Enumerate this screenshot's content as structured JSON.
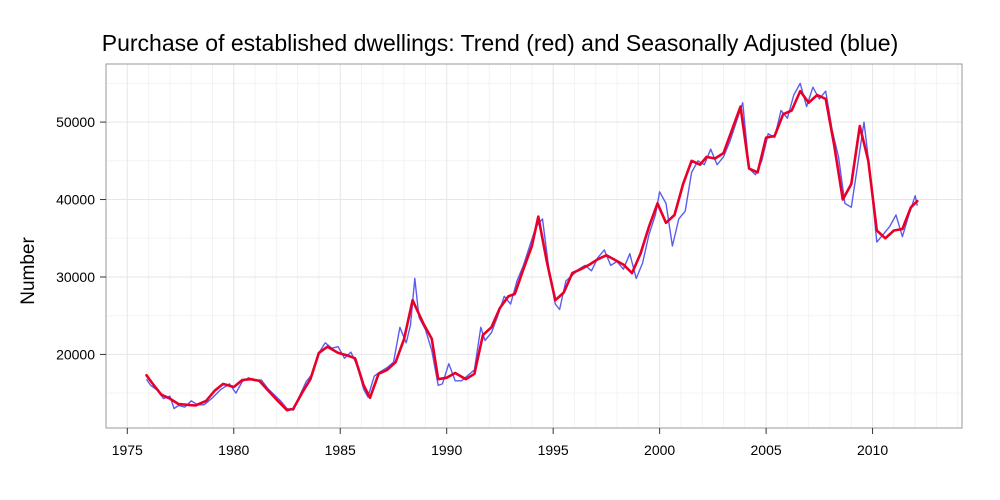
{
  "chart_data": {
    "type": "line",
    "title": "Purchase of established dwellings: Trend (red) and Seasonally Adjusted (blue)",
    "xlabel": "",
    "ylabel": "Number",
    "xlim": [
      1974.0,
      2014.2
    ],
    "ylim": [
      10500,
      57500
    ],
    "x_ticks": [
      1975,
      1980,
      1985,
      1990,
      1995,
      2000,
      2005,
      2010
    ],
    "y_ticks": [
      20000,
      30000,
      40000,
      50000
    ],
    "grid": true,
    "colors": {
      "trend": "#e8002a",
      "seasonally_adjusted": "#4a4aee",
      "grid_major": "#e6e6e6",
      "grid_minor": "#f3f3f3",
      "panel_border": "#9a9a9a"
    },
    "series": [
      {
        "key": "trend",
        "x": [
          1975.9,
          1976.2,
          1976.6,
          1977.0,
          1977.4,
          1977.8,
          1978.2,
          1978.7,
          1979.1,
          1979.5,
          1980.0,
          1980.4,
          1980.8,
          1981.2,
          1981.6,
          1982.0,
          1982.5,
          1982.8,
          1983.2,
          1983.6,
          1984.0,
          1984.4,
          1984.9,
          1985.3,
          1985.7,
          1986.1,
          1986.4,
          1986.8,
          1987.2,
          1987.6,
          1988.0,
          1988.4,
          1988.9,
          1989.3,
          1989.6,
          1990.0,
          1990.4,
          1990.9,
          1991.3,
          1991.7,
          1992.1,
          1992.5,
          1992.9,
          1993.2,
          1993.6,
          1994.0,
          1994.3,
          1994.7,
          1995.1,
          1995.5,
          1995.9,
          1996.3,
          1996.7,
          1997.1,
          1997.5,
          1997.9,
          1998.3,
          1998.7,
          1999.1,
          1999.5,
          1999.9,
          2000.3,
          2000.7,
          2001.1,
          2001.5,
          2001.9,
          2002.2,
          2002.6,
          2003.0,
          2003.4,
          2003.8,
          2004.2,
          2004.6,
          2005.0,
          2005.4,
          2005.8,
          2006.2,
          2006.6,
          2007.0,
          2007.4,
          2007.8,
          2008.2,
          2008.6,
          2009.0,
          2009.4,
          2009.8,
          2010.2,
          2010.6,
          2011.0,
          2011.4,
          2011.8,
          2012.1
        ],
        "values": [
          17300,
          16200,
          14800,
          14300,
          13600,
          13500,
          13400,
          14000,
          15300,
          16200,
          15800,
          16700,
          16800,
          16600,
          15400,
          14200,
          12800,
          13000,
          15000,
          16800,
          20200,
          21000,
          20200,
          19900,
          19500,
          16000,
          14400,
          17500,
          18000,
          19000,
          22000,
          27000,
          24000,
          22000,
          16800,
          17000,
          17600,
          16800,
          17500,
          22500,
          23500,
          26000,
          27500,
          27800,
          31000,
          34000,
          37800,
          32000,
          27000,
          28000,
          30500,
          31000,
          31600,
          32300,
          32800,
          32200,
          31600,
          30500,
          33000,
          36500,
          39500,
          37000,
          38000,
          42000,
          45000,
          44500,
          45500,
          45300,
          46000,
          49000,
          52000,
          44000,
          43500,
          48000,
          48200,
          51000,
          51500,
          54000,
          52500,
          53500,
          53000,
          47000,
          40000,
          42000,
          49500,
          45000,
          36000,
          35000,
          36000,
          36200,
          39000,
          39800
        ]
      },
      {
        "key": "seasonally_adjusted",
        "x": [
          1975.9,
          1976.1,
          1976.4,
          1976.7,
          1977.0,
          1977.2,
          1977.4,
          1977.7,
          1978.0,
          1978.3,
          1978.6,
          1979.0,
          1979.4,
          1979.8,
          1980.1,
          1980.4,
          1980.7,
          1981.0,
          1981.3,
          1981.6,
          1981.9,
          1982.2,
          1982.5,
          1982.8,
          1983.1,
          1983.4,
          1983.7,
          1984.0,
          1984.3,
          1984.6,
          1984.9,
          1985.2,
          1985.5,
          1985.8,
          1986.1,
          1986.3,
          1986.6,
          1986.9,
          1987.2,
          1987.5,
          1987.8,
          1988.1,
          1988.3,
          1988.5,
          1988.7,
          1989.0,
          1989.3,
          1989.6,
          1989.8,
          1990.1,
          1990.4,
          1990.7,
          1991.0,
          1991.3,
          1991.6,
          1991.8,
          1992.1,
          1992.4,
          1992.7,
          1993.0,
          1993.3,
          1993.6,
          1993.9,
          1994.2,
          1994.5,
          1994.8,
          1995.1,
          1995.3,
          1995.6,
          1995.9,
          1996.2,
          1996.5,
          1996.8,
          1997.1,
          1997.4,
          1997.7,
          1998.0,
          1998.3,
          1998.6,
          1998.9,
          1999.2,
          1999.5,
          1999.8,
          2000.0,
          2000.3,
          2000.6,
          2000.9,
          2001.2,
          2001.5,
          2001.8,
          2002.1,
          2002.4,
          2002.7,
          2003.0,
          2003.3,
          2003.6,
          2003.9,
          2004.2,
          2004.5,
          2004.8,
          2005.1,
          2005.4,
          2005.7,
          2006.0,
          2006.3,
          2006.6,
          2006.9,
          2007.2,
          2007.5,
          2007.8,
          2008.1,
          2008.4,
          2008.7,
          2009.0,
          2009.3,
          2009.6,
          2009.9,
          2010.2,
          2010.5,
          2010.8,
          2011.1,
          2011.4,
          2011.7,
          2012.0,
          2012.1
        ],
        "values": [
          16800,
          16000,
          15400,
          14300,
          14600,
          13000,
          13400,
          13200,
          14000,
          13500,
          13500,
          14400,
          15500,
          16200,
          15000,
          16500,
          17000,
          16600,
          16700,
          15600,
          14800,
          14000,
          13000,
          12800,
          14700,
          16500,
          17500,
          20200,
          21500,
          20800,
          21000,
          19500,
          20300,
          18500,
          15500,
          14500,
          17200,
          17800,
          18300,
          19000,
          23500,
          21500,
          23800,
          29800,
          24800,
          23200,
          20500,
          16000,
          16200,
          18800,
          16600,
          16600,
          17300,
          18000,
          23500,
          21800,
          22800,
          25000,
          27500,
          26500,
          29500,
          31500,
          34000,
          36500,
          37500,
          31000,
          26500,
          25800,
          29500,
          30200,
          31000,
          31500,
          30800,
          32500,
          33500,
          31500,
          32000,
          31000,
          33000,
          29800,
          31800,
          35500,
          38000,
          41000,
          39500,
          34000,
          37500,
          38500,
          43500,
          45000,
          44500,
          46500,
          44500,
          45500,
          47500,
          50000,
          52500,
          44000,
          43200,
          45000,
          48500,
          48000,
          51500,
          50500,
          53500,
          55000,
          52000,
          54500,
          53000,
          54000,
          49000,
          45500,
          39500,
          39000,
          44500,
          50000,
          43000,
          34500,
          35500,
          36500,
          38000,
          35200,
          38000,
          40500,
          39200
        ]
      }
    ]
  }
}
